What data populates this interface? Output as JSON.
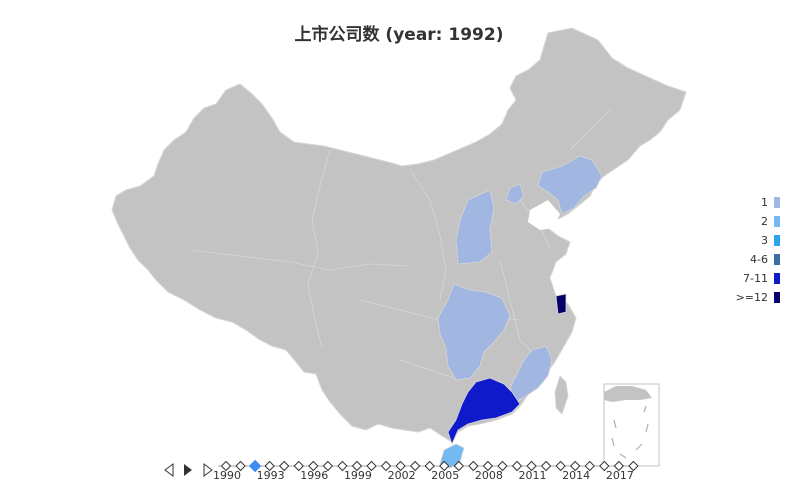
{
  "title": "上市公司数 (year: 1992)",
  "legend": [
    {
      "label": "1",
      "color": "#a1b6e0"
    },
    {
      "label": "2",
      "color": "#74b9f1"
    },
    {
      "label": "3",
      "color": "#2aa4f0"
    },
    {
      "label": "4-6",
      "color": "#3b6ea5"
    },
    {
      "label": "7-11",
      "color": "#0f1acb"
    },
    {
      "label": ">=12",
      "color": "#07006b"
    }
  ],
  "map": {
    "base_color": "#c3c3c3",
    "border_color": "#d6d6d6",
    "regions": [
      {
        "name": "Shanxi",
        "legend": "1"
      },
      {
        "name": "Beijing",
        "legend": "1"
      },
      {
        "name": "Liaoning",
        "legend": "1"
      },
      {
        "name": "Sichuan",
        "legend": "1"
      },
      {
        "name": "Fujian",
        "legend": "1"
      },
      {
        "name": "Hainan",
        "legend": "2"
      },
      {
        "name": "Guangdong",
        "legend": "7-11"
      },
      {
        "name": "Shanghai",
        "legend": ">=12"
      }
    ]
  },
  "timeline": {
    "current_year": "1992",
    "accent_color": "#3c8cf0",
    "labels": [
      "1990",
      "1993",
      "1996",
      "1999",
      "2002",
      "2005",
      "2008",
      "2011",
      "2014",
      "2017"
    ],
    "point_count": 29,
    "current_index": 2
  }
}
